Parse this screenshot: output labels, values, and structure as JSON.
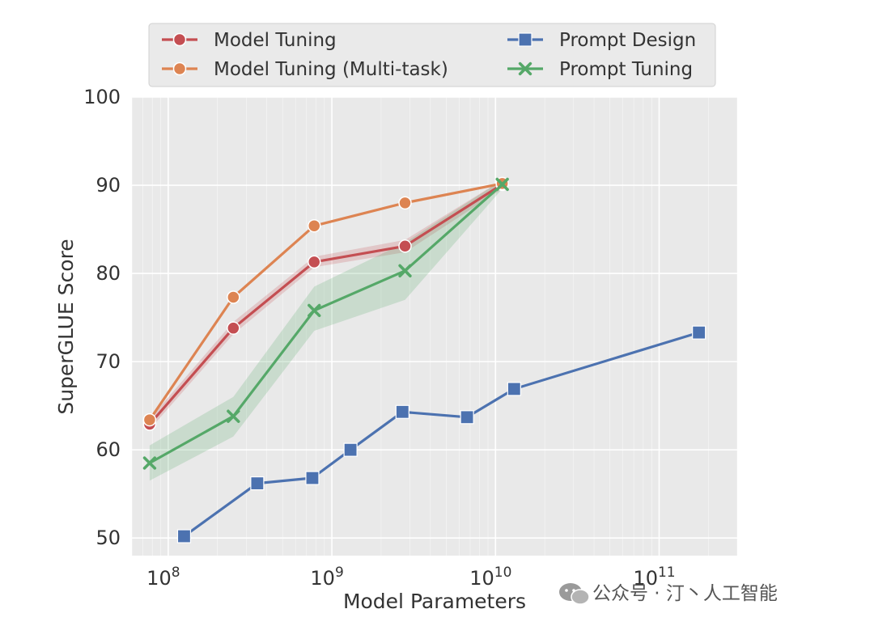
{
  "chart_data": {
    "type": "line",
    "xscale": "log",
    "xlim": [
      60000000,
      300000000000
    ],
    "ylim": [
      48,
      100
    ],
    "xlabel": "Model Parameters",
    "ylabel": "SuperGLUE Score",
    "grid": true,
    "legend_position": "top",
    "x_ticks": [
      {
        "value": 100000000,
        "base": "10",
        "exp": "8"
      },
      {
        "value": 1000000000,
        "base": "10",
        "exp": "9"
      },
      {
        "value": 10000000000,
        "base": "10",
        "exp": "10"
      },
      {
        "value": 100000000000,
        "base": "10",
        "exp": "11"
      }
    ],
    "y_ticks": [
      50,
      60,
      70,
      80,
      90,
      100
    ],
    "series": [
      {
        "name": "Model Tuning",
        "color": "#c44e52",
        "marker": "circle",
        "x": [
          77000000,
          250000000,
          780000000,
          2800000000,
          11000000000
        ],
        "y": [
          62.9,
          73.8,
          81.3,
          83.1,
          90.1
        ],
        "band_low": [
          62.3,
          73.1,
          80.7,
          82.4,
          89.6
        ],
        "band_high": [
          63.5,
          74.5,
          81.9,
          83.8,
          90.6
        ]
      },
      {
        "name": "Model Tuning (Multi-task)",
        "color": "#dd8452",
        "marker": "circle",
        "x": [
          77000000,
          250000000,
          780000000,
          2800000000,
          11000000000
        ],
        "y": [
          63.4,
          77.3,
          85.4,
          88.0,
          90.2
        ]
      },
      {
        "name": "Prompt Design",
        "color": "#4c72b0",
        "marker": "square",
        "x": [
          125000000,
          350000000,
          760000000,
          1300000000,
          2700000000,
          6700000000,
          13000000000,
          175000000000
        ],
        "y": [
          50.2,
          56.2,
          56.8,
          60.0,
          64.3,
          63.7,
          66.9,
          73.3
        ]
      },
      {
        "name": "Prompt Tuning",
        "color": "#55a868",
        "marker": "x",
        "x": [
          77000000,
          250000000,
          780000000,
          2800000000,
          11000000000
        ],
        "y": [
          58.5,
          63.8,
          75.8,
          80.3,
          90.1
        ],
        "band_low": [
          56.5,
          61.5,
          73.5,
          77.0,
          89.6
        ],
        "band_high": [
          60.5,
          66.0,
          78.5,
          83.5,
          90.6
        ]
      }
    ]
  },
  "watermark": {
    "text": "公众号 · 汀丶人工智能",
    "icon": "wechat-icon"
  }
}
